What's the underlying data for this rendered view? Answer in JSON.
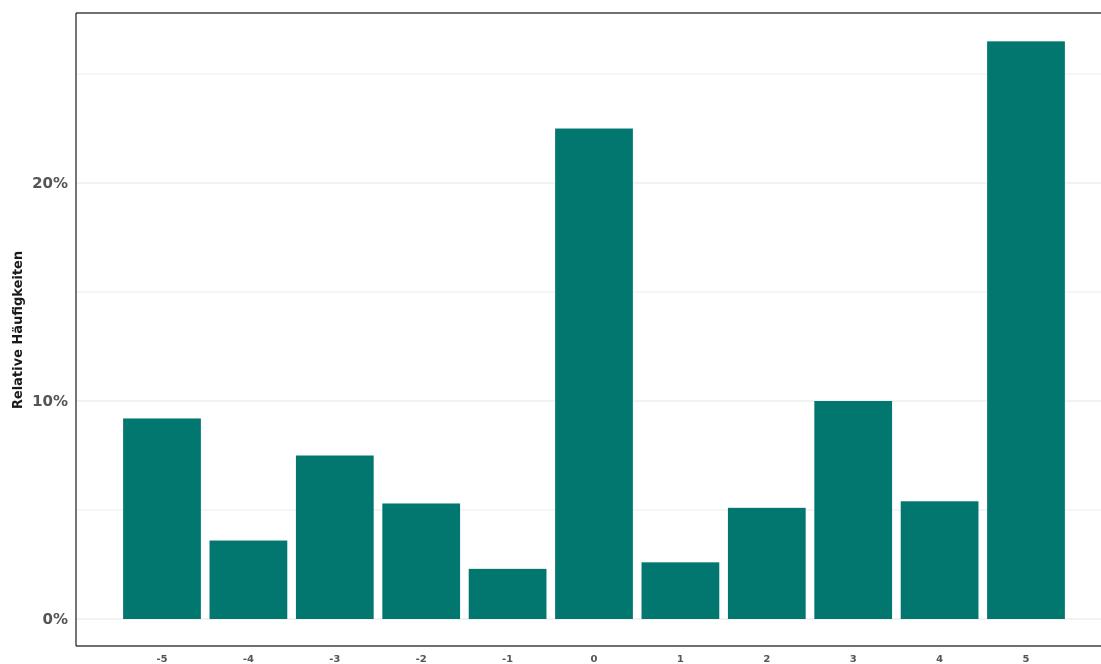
{
  "chart_data": {
    "type": "bar",
    "categories": [
      "-5",
      "-4",
      "-3",
      "-2",
      "-1",
      "0",
      "1",
      "2",
      "3",
      "4",
      "5"
    ],
    "values": [
      9.2,
      3.6,
      7.5,
      5.3,
      2.3,
      22.5,
      2.6,
      5.1,
      10.0,
      5.4,
      26.5
    ],
    "value_unit": "%",
    "title": "",
    "xlabel": "",
    "ylabel": "Relative Häufigkeiten",
    "ylim": [
      0,
      27.8
    ],
    "y_ticks": [
      0,
      10,
      20
    ],
    "y_tick_labels": [
      "0%",
      "10%",
      "20%"
    ],
    "y_minor_gridlines": [
      5,
      15,
      25
    ],
    "grid": true,
    "legend": "none",
    "bar_color": "#02776f",
    "grid_color": "#ebebeb",
    "frame_color": "#1a1a1a"
  }
}
